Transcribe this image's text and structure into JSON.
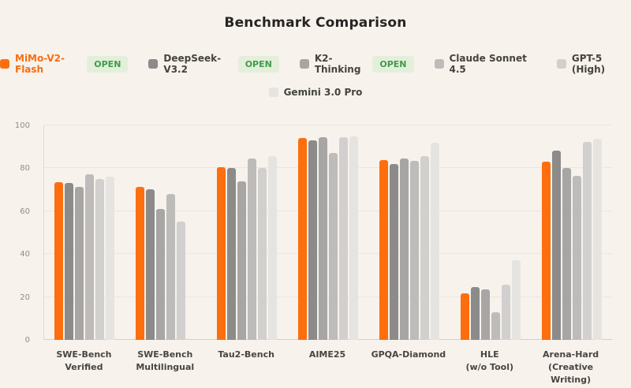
{
  "title": "Benchmark Comparison",
  "legend": {
    "open_label": "OPEN",
    "rows": [
      [
        0,
        1,
        2,
        3,
        4
      ],
      [
        5
      ]
    ]
  },
  "chart_data": {
    "type": "bar",
    "title": "Benchmark Comparison",
    "categories": [
      "SWE-Bench\nVerified",
      "SWE-Bench\nMultilingual",
      "Tau2-Bench",
      "AIME25",
      "GPQA-Diamond",
      "HLE\n(w/o Tool)",
      "Arena-Hard\n(Creative Writing)"
    ],
    "series": [
      {
        "name": "MiMo-V2-Flash",
        "color": "#fd6e0e",
        "open": true,
        "highlight": true,
        "values": [
          73.4,
          71.5,
          80.5,
          94.1,
          83.7,
          21.8,
          83.2
        ]
      },
      {
        "name": "DeepSeek-V3.2",
        "color": "#8c8b8a",
        "open": true,
        "highlight": false,
        "values": [
          73.0,
          70.1,
          80.3,
          93.0,
          82.1,
          24.6,
          88.3
        ]
      },
      {
        "name": "K2-Thinking",
        "color": "#a7a6a4",
        "open": true,
        "highlight": false,
        "values": [
          71.3,
          61.0,
          74.0,
          94.5,
          84.6,
          23.4,
          80.0
        ]
      },
      {
        "name": "Claude Sonnet 4.5",
        "color": "#bebcba",
        "open": false,
        "highlight": false,
        "values": [
          77.2,
          68.0,
          84.7,
          87.0,
          83.4,
          13.0,
          76.3
        ]
      },
      {
        "name": "GPT-5 (High)",
        "color": "#d2d0ce",
        "open": false,
        "highlight": false,
        "values": [
          74.9,
          55.0,
          80.1,
          94.6,
          85.7,
          25.9,
          92.3
        ]
      },
      {
        "name": "Gemini 3.0 Pro",
        "color": "#e6e4e1",
        "open": false,
        "highlight": false,
        "values": [
          76.2,
          null,
          85.5,
          95.0,
          91.9,
          37.2,
          93.8
        ]
      }
    ],
    "ylim": [
      0,
      100
    ],
    "yticks": [
      0,
      20,
      40,
      60,
      80,
      100
    ],
    "xlabel": "",
    "ylabel": "",
    "grid": true,
    "legend_position": "top",
    "background": "#f7f2ec"
  }
}
